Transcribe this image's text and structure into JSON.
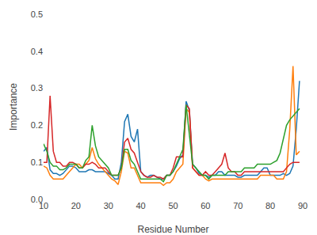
{
  "chart_data": {
    "type": "line",
    "xlabel": "Residue Number",
    "ylabel": "Importance",
    "xlim": [
      10,
      90
    ],
    "ylim": [
      0.0,
      0.5
    ],
    "xticks": [
      10,
      20,
      30,
      40,
      50,
      60,
      70,
      80,
      90
    ],
    "yticks": [
      {
        "value": 0.0,
        "label": "0.0"
      },
      0.1,
      0.2,
      0.3,
      0.4,
      0.5
    ],
    "grid": false,
    "x": [
      10,
      11,
      12,
      13,
      14,
      15,
      16,
      17,
      18,
      19,
      20,
      21,
      22,
      23,
      24,
      25,
      26,
      27,
      28,
      29,
      30,
      31,
      32,
      33,
      34,
      35,
      36,
      37,
      38,
      39,
      40,
      41,
      42,
      43,
      44,
      45,
      46,
      47,
      48,
      49,
      50,
      51,
      52,
      53,
      54,
      55,
      56,
      57,
      58,
      59,
      60,
      61,
      62,
      63,
      64,
      65,
      66,
      67,
      68,
      69,
      70,
      71,
      72,
      73,
      74,
      75,
      76,
      77,
      78,
      79,
      80,
      81,
      82,
      83,
      84,
      85,
      86,
      87,
      88,
      89
    ],
    "series": [
      {
        "color": "#1f77b4",
        "values": [
          0.13,
          0.14,
          0.08,
          0.07,
          0.07,
          0.065,
          0.07,
          0.08,
          0.09,
          0.09,
          0.085,
          0.075,
          0.075,
          0.075,
          0.08,
          0.08,
          0.075,
          0.075,
          0.075,
          0.075,
          0.07,
          0.065,
          0.055,
          0.055,
          0.1,
          0.21,
          0.23,
          0.17,
          0.155,
          0.19,
          0.075,
          0.065,
          0.06,
          0.065,
          0.065,
          0.06,
          0.055,
          0.055,
          0.065,
          0.065,
          0.075,
          0.09,
          0.11,
          0.12,
          0.265,
          0.24,
          0.095,
          0.085,
          0.07,
          0.065,
          0.065,
          0.06,
          0.065,
          0.065,
          0.075,
          0.075,
          0.065,
          0.065,
          0.065,
          0.065,
          0.06,
          0.06,
          0.065,
          0.065,
          0.065,
          0.065,
          0.065,
          0.075,
          0.085,
          0.085,
          0.065,
          0.065,
          0.065,
          0.065,
          0.07,
          0.065,
          0.07,
          0.09,
          0.19,
          0.32
        ]
      },
      {
        "color": "#ff7f0e",
        "values": [
          0.09,
          0.085,
          0.065,
          0.055,
          0.055,
          0.055,
          0.055,
          0.065,
          0.075,
          0.085,
          0.095,
          0.095,
          0.085,
          0.095,
          0.105,
          0.14,
          0.11,
          0.095,
          0.085,
          0.075,
          0.065,
          0.055,
          0.05,
          0.04,
          0.075,
          0.13,
          0.125,
          0.085,
          0.085,
          0.065,
          0.045,
          0.045,
          0.045,
          0.045,
          0.045,
          0.045,
          0.045,
          0.038,
          0.045,
          0.045,
          0.055,
          0.075,
          0.085,
          0.095,
          0.245,
          0.235,
          0.085,
          0.075,
          0.065,
          0.065,
          0.055,
          0.05,
          0.055,
          0.055,
          0.055,
          0.055,
          0.055,
          0.055,
          0.055,
          0.055,
          0.055,
          0.055,
          0.055,
          0.055,
          0.055,
          0.055,
          0.055,
          0.065,
          0.065,
          0.065,
          0.065,
          0.065,
          0.055,
          0.055,
          0.055,
          0.075,
          0.19,
          0.36,
          0.12,
          0.13
        ]
      },
      {
        "color": "#d62728",
        "values": [
          0.1,
          0.1,
          0.28,
          0.13,
          0.1,
          0.1,
          0.09,
          0.09,
          0.1,
          0.1,
          0.095,
          0.085,
          0.085,
          0.095,
          0.095,
          0.1,
          0.095,
          0.085,
          0.085,
          0.085,
          0.075,
          0.065,
          0.065,
          0.065,
          0.085,
          0.155,
          0.165,
          0.135,
          0.125,
          0.1,
          0.075,
          0.065,
          0.06,
          0.06,
          0.065,
          0.06,
          0.06,
          0.055,
          0.065,
          0.065,
          0.085,
          0.115,
          0.115,
          0.115,
          0.255,
          0.245,
          0.085,
          0.075,
          0.065,
          0.065,
          0.075,
          0.065,
          0.065,
          0.075,
          0.085,
          0.095,
          0.125,
          0.085,
          0.075,
          0.075,
          0.065,
          0.065,
          0.075,
          0.075,
          0.075,
          0.075,
          0.075,
          0.075,
          0.075,
          0.075,
          0.075,
          0.075,
          0.075,
          0.075,
          0.075,
          0.085,
          0.095,
          0.1,
          0.1,
          0.1
        ]
      },
      {
        "color": "#2ca02c",
        "values": [
          0.15,
          0.13,
          0.1,
          0.09,
          0.09,
          0.08,
          0.08,
          0.085,
          0.095,
          0.095,
          0.095,
          0.085,
          0.085,
          0.105,
          0.115,
          0.2,
          0.145,
          0.115,
          0.105,
          0.095,
          0.085,
          0.065,
          0.065,
          0.065,
          0.085,
          0.135,
          0.135,
          0.105,
          0.095,
          0.075,
          0.055,
          0.055,
          0.055,
          0.055,
          0.055,
          0.055,
          0.055,
          0.048,
          0.065,
          0.065,
          0.075,
          0.095,
          0.115,
          0.135,
          0.255,
          0.175,
          0.095,
          0.085,
          0.075,
          0.065,
          0.065,
          0.055,
          0.065,
          0.065,
          0.065,
          0.065,
          0.065,
          0.075,
          0.075,
          0.075,
          0.075,
          0.075,
          0.085,
          0.085,
          0.085,
          0.085,
          0.095,
          0.095,
          0.095,
          0.095,
          0.095,
          0.1,
          0.105,
          0.125,
          0.165,
          0.2,
          0.215,
          0.225,
          0.235,
          0.245
        ]
      }
    ]
  }
}
